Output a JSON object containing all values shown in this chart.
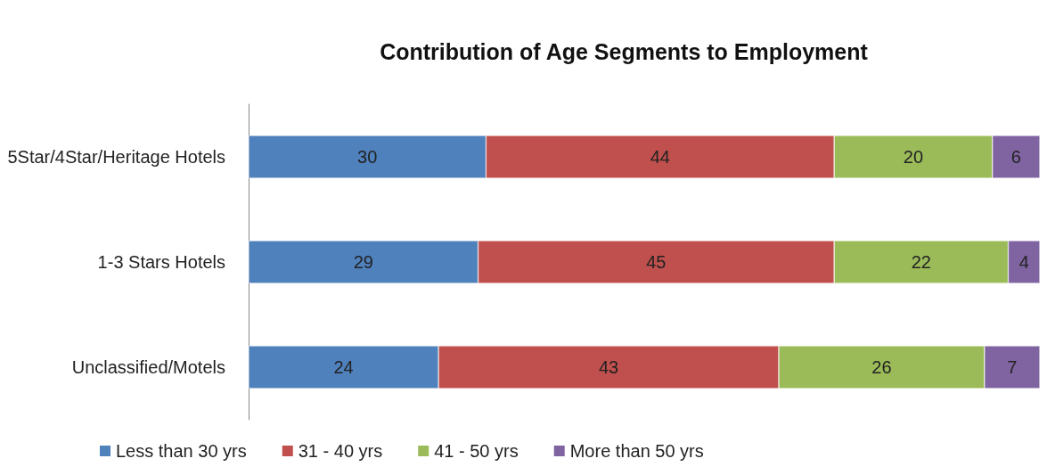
{
  "chart_data": {
    "type": "bar",
    "title": "Contribution of Age Segments to Employment",
    "orientation": "horizontal",
    "stacked": true,
    "categories": [
      "5Star/4Star/Heritage Hotels",
      "1-3 Stars Hotels",
      "Unclassified/Motels"
    ],
    "series": [
      {
        "name": "Less than 30 yrs",
        "color": "#4f81bd",
        "values": [
          30,
          29,
          24
        ]
      },
      {
        "name": "31 - 40 yrs",
        "color": "#c0504d",
        "values": [
          44,
          45,
          43
        ]
      },
      {
        "name": "41 - 50 yrs",
        "color": "#9bbb59",
        "values": [
          20,
          22,
          26
        ]
      },
      {
        "name": "More than 50 yrs",
        "color": "#8064a2",
        "values": [
          6,
          4,
          7
        ]
      }
    ],
    "xlim": [
      0,
      100
    ],
    "tick_labels": "y",
    "data_labels": true,
    "grid": false,
    "legend": "bottom"
  }
}
